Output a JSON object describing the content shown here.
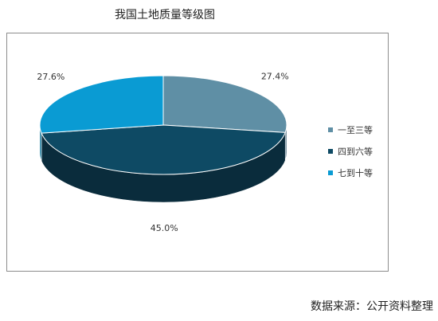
{
  "chart_data": {
    "type": "pie",
    "title": "我国土地质量等级图",
    "categories": [
      "一至三等",
      "四到六等",
      "七到十等"
    ],
    "values": [
      27.4,
      45.0,
      27.6
    ],
    "labels": [
      "27.4%",
      "45.0%",
      "27.6%"
    ],
    "colors": [
      "#5f8fa5",
      "#0e4a64",
      "#0a9bd3"
    ],
    "side_colors": [
      "#46687b",
      "#0a2c3c",
      "#067096"
    ],
    "legend_position": "right",
    "style": "3d"
  },
  "source": "数据来源：公开资料整理"
}
